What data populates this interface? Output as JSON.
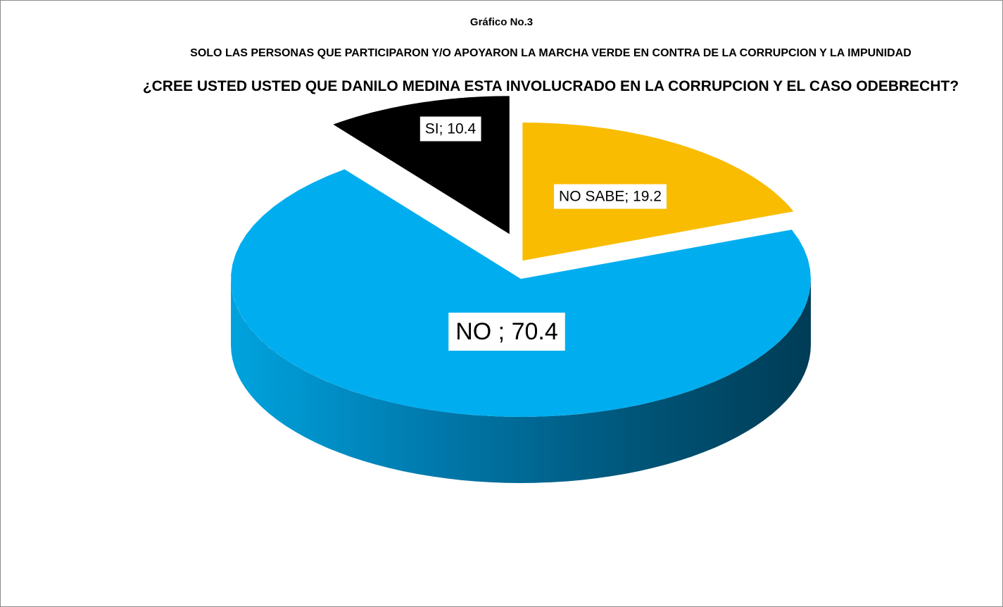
{
  "chart_data": {
    "type": "pie",
    "title": "Gráfico No.3",
    "subtitle": "SOLO LAS PERSONAS QUE PARTICIPARON  Y/O APOYARON LA MARCHA VERDE EN CONTRA DE LA CORRUPCION Y LA IMPUNIDAD",
    "question": "¿CREE USTED USTED QUE DANILO MEDINA ESTA INVOLUCRADO EN LA CORRUPCION Y EL CASO ODEBRECHT?",
    "style": "3d-exploded",
    "slices": [
      {
        "label": "SI",
        "value": 10.4,
        "data_label": "SI; 10.4",
        "color": "#000000",
        "exploded": true
      },
      {
        "label": "NO SABE",
        "value": 19.2,
        "data_label": "NO SABE; 19.2",
        "color": "#F9BC00",
        "exploded": true
      },
      {
        "label": "NO",
        "value": 70.4,
        "data_label": "NO ; 70.4",
        "color": "#00AEEF",
        "exploded": false
      }
    ]
  }
}
